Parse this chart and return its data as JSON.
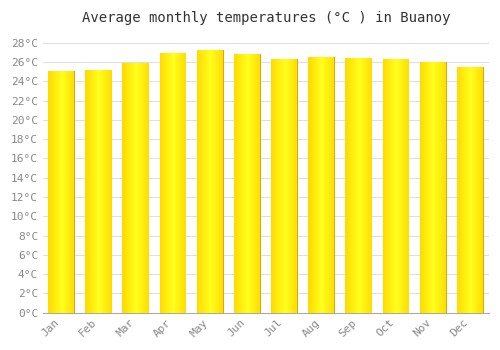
{
  "title": "Average monthly temperatures (°C ) in Buanoy",
  "months": [
    "Jan",
    "Feb",
    "Mar",
    "Apr",
    "May",
    "Jun",
    "Jul",
    "Aug",
    "Sep",
    "Oct",
    "Nov",
    "Dec"
  ],
  "values": [
    25.1,
    25.2,
    25.9,
    26.9,
    27.3,
    26.8,
    26.3,
    26.5,
    26.4,
    26.3,
    26.0,
    25.5
  ],
  "bar_color": "#FFC125",
  "bar_edge_color": "#CC8800",
  "ylim": [
    0,
    29
  ],
  "ytick_step": 2,
  "background_color": "#FFFFFF",
  "plot_bg_color": "#FFFFFF",
  "grid_color": "#DDDDDD",
  "title_fontsize": 10,
  "tick_fontsize": 8,
  "font_family": "monospace",
  "title_color": "#333333",
  "tick_color": "#888888"
}
